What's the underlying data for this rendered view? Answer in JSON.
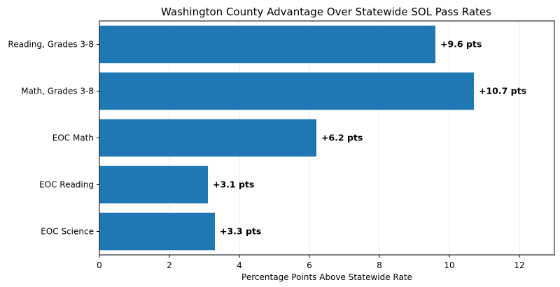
{
  "chart_data": {
    "type": "bar",
    "orientation": "horizontal",
    "title": "Washington County Advantage Over Statewide SOL Pass Rates",
    "xlabel": "Percentage Points Above Statewide Rate",
    "ylabel": "",
    "categories": [
      "Reading, Grades 3-8",
      "Math, Grades 3-8",
      "EOC Math",
      "EOC Reading",
      "EOC Science"
    ],
    "values": [
      9.6,
      10.7,
      6.2,
      3.1,
      3.3
    ],
    "data_labels": [
      "+9.6 pts",
      "+10.7 pts",
      "+6.2 pts",
      "+3.1 pts",
      "+3.3 pts"
    ],
    "xlim": [
      0,
      13
    ],
    "xticks": [
      0,
      2,
      4,
      6,
      8,
      10,
      12
    ],
    "xtick_labels": [
      "0",
      "2",
      "4",
      "6",
      "8",
      "10",
      "12"
    ],
    "grid": "x",
    "bar_color": "#1f77b4"
  }
}
